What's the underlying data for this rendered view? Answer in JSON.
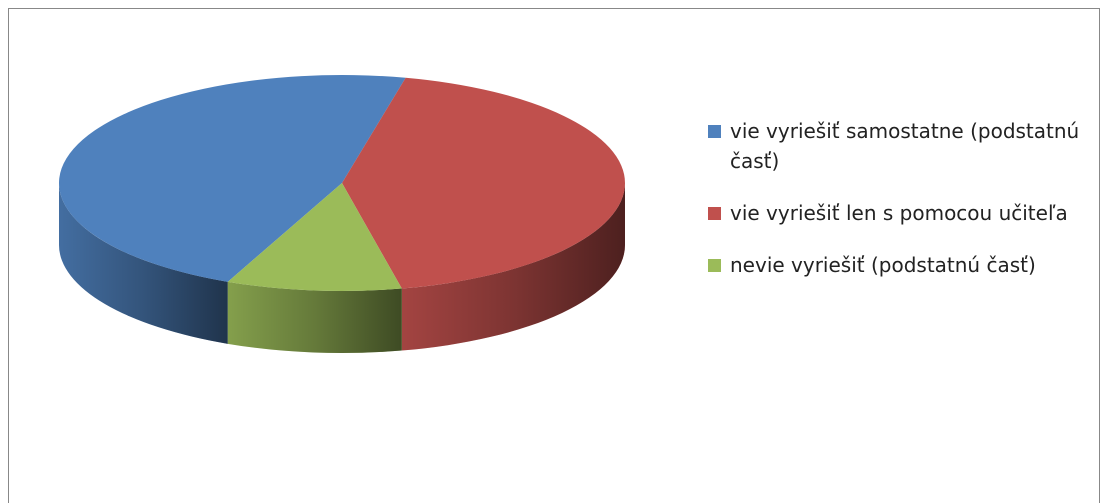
{
  "chart_data": {
    "type": "pie3d",
    "series": [
      {
        "name": "vie vyriešiť samostatne (podstatnú časť)",
        "color": "#4f81bd",
        "value": 47
      },
      {
        "name": "vie vyriešiť len s pomocou učiteľa",
        "color": "#c0504d",
        "value": 43
      },
      {
        "name": "nevie vyriešiť (podstatnú časť)",
        "color": "#9bbb59",
        "value": 10
      }
    ],
    "legend": "right"
  }
}
